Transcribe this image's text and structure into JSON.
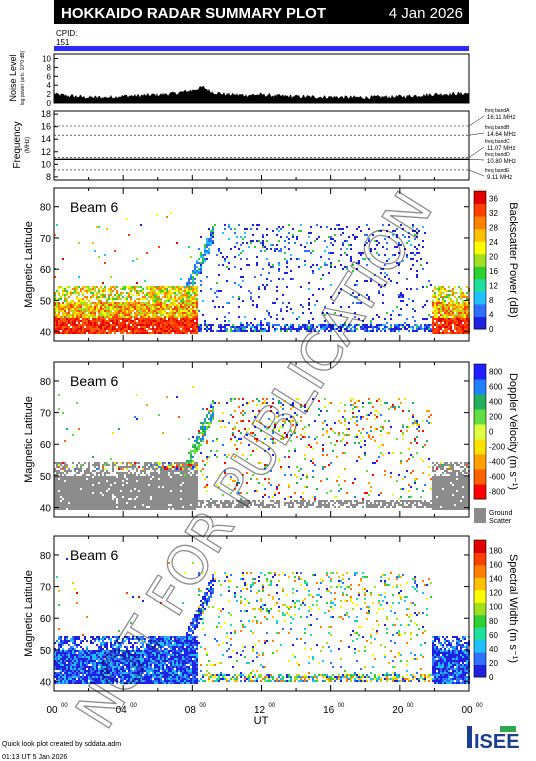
{
  "header": {
    "title": "HOKKAIDO RADAR SUMMARY PLOT",
    "date": "4 Jan 2026",
    "cpid_label": "CPID:",
    "cpid_value": "151",
    "bar_color": "#2b2bff"
  },
  "watermark": "NOT FOR PUBLICATION",
  "footer": {
    "credit": "Quick look plot created by sddata.adm",
    "timestamp": "01:13 UT 5 Jan 2026",
    "logo": "ISEE"
  },
  "chart_data": [
    {
      "type": "area",
      "name": "noise",
      "ylabel_main": "Noise Level",
      "ylabel_sub": "log power (arb. 10^0 dB)",
      "yticks": [
        0,
        2,
        4,
        6,
        8,
        10
      ],
      "ylim": [
        0,
        11
      ],
      "xlim": [
        0,
        24
      ],
      "color": "#000000",
      "profile": [
        [
          0,
          2.0
        ],
        [
          1,
          1.6
        ],
        [
          2,
          1.3
        ],
        [
          3,
          1.3
        ],
        [
          4,
          1.6
        ],
        [
          5,
          1.7
        ],
        [
          6,
          1.9
        ],
        [
          7,
          2.2
        ],
        [
          8,
          2.9
        ],
        [
          8.6,
          3.6
        ],
        [
          9.2,
          2.4
        ],
        [
          10,
          2.0
        ],
        [
          11,
          1.8
        ],
        [
          12,
          1.9
        ],
        [
          13,
          1.6
        ],
        [
          14,
          1.5
        ],
        [
          15,
          1.4
        ],
        [
          16,
          1.4
        ],
        [
          17,
          1.3
        ],
        [
          18,
          1.3
        ],
        [
          19,
          1.4
        ],
        [
          20,
          1.5
        ],
        [
          21,
          1.7
        ],
        [
          22,
          2.0
        ],
        [
          23,
          2.1
        ],
        [
          24,
          2.2
        ]
      ]
    },
    {
      "type": "line",
      "name": "frequency",
      "ylabel_main": "Frequency",
      "ylabel_sub": "(MHz)",
      "yticks": [
        8,
        10,
        12,
        14,
        16,
        18
      ],
      "ylim": [
        7.5,
        18.5
      ],
      "xlim": [
        0,
        24
      ],
      "bands": [
        {
          "label": "freq bandA",
          "value": 16.11,
          "text": "16.11 MHz"
        },
        {
          "label": "freq bandB",
          "value": 14.64,
          "text": "14.64 MHz"
        },
        {
          "label": "freq bandC",
          "value": 11.07,
          "text": "11.07 MHz"
        },
        {
          "label": "freq bandD",
          "value": 10.8,
          "text": "10.80 MHz"
        },
        {
          "label": "freq bandE",
          "value": 9.11,
          "text": "9.11 MHz"
        }
      ],
      "series": [
        {
          "value": 10.8,
          "x": [
            0,
            24
          ]
        }
      ]
    },
    {
      "type": "heatmap",
      "name": "power",
      "beam_label": "Beam 6",
      "ylabel": "Magnetic Latitude",
      "yticks": [
        40,
        50,
        60,
        70,
        80
      ],
      "ylim": [
        37,
        86
      ],
      "xlim": [
        0,
        24
      ],
      "colorbar": {
        "label": "Backscatter Power (dB)",
        "ticks": [
          0,
          4,
          8,
          12,
          16,
          20,
          24,
          28,
          32,
          36
        ],
        "range": [
          0,
          38
        ],
        "colors": [
          "#2020e0",
          "#3070ff",
          "#20c0ff",
          "#20e0a0",
          "#30d030",
          "#a0e020",
          "#ffff00",
          "#ffc000",
          "#ff8000",
          "#ff4000",
          "#e00000"
        ]
      }
    },
    {
      "type": "heatmap",
      "name": "velocity",
      "beam_label": "Beam 6",
      "ylabel": "Magnetic Latitude",
      "yticks": [
        40,
        50,
        60,
        70,
        80
      ],
      "ylim": [
        37,
        86
      ],
      "xlim": [
        0,
        24
      ],
      "colorbar": {
        "label": "Doppler Velocity (m s⁻¹)",
        "ticks": [
          -800,
          -600,
          -400,
          -200,
          0,
          200,
          400,
          600,
          800
        ],
        "range": [
          -900,
          900
        ],
        "colors": [
          "#ff0000",
          "#ff6000",
          "#ffa000",
          "#ffe000",
          "#e0ff40",
          "#60e040",
          "#20b060",
          "#2080ff",
          "#2020ff"
        ],
        "ground_label_1": "Ground",
        "ground_label_2": "Scatter",
        "ground_color": "#8c8c8c"
      }
    },
    {
      "type": "heatmap",
      "name": "width",
      "beam_label": "Beam 6",
      "ylabel": "Magnetic Latitude",
      "yticks": [
        40,
        50,
        60,
        70,
        80
      ],
      "ylim": [
        37,
        86
      ],
      "xlim": [
        0,
        24
      ],
      "xlabel": "UT",
      "xticks": [
        "00",
        "04",
        "08",
        "12",
        "16",
        "20",
        "00"
      ],
      "xtick_suffix": "00",
      "colorbar": {
        "label": "Spectral Width (m s⁻¹)",
        "ticks": [
          0,
          20,
          40,
          60,
          80,
          100,
          120,
          140,
          160,
          180
        ],
        "range": [
          0,
          195
        ],
        "colors": [
          "#2020e0",
          "#3070ff",
          "#20c0ff",
          "#20e0a0",
          "#30d030",
          "#a0e020",
          "#ffff00",
          "#ffc000",
          "#ff8000",
          "#ff4000",
          "#e00000"
        ]
      }
    }
  ]
}
